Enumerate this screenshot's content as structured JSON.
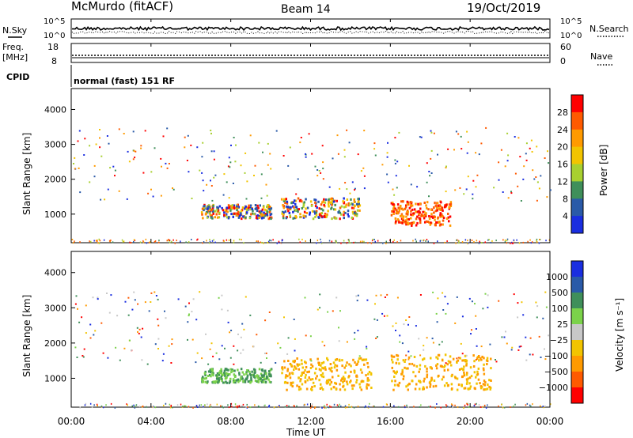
{
  "header": {
    "station": "McMurdo (fitACF)",
    "beam": "Beam 14",
    "date": "19/Oct/2019"
  },
  "top_panels": {
    "nsky_label": "N.Sky",
    "nsearch_label": "N.Search",
    "noise_ticks_left": [
      "10^5",
      "10^0"
    ],
    "noise_ticks_right": [
      "10^5",
      "10^0"
    ],
    "freq_label": "Freq.",
    "freq_unit": "[MHz]",
    "freq_ticks": [
      "18",
      "8"
    ],
    "nave_label": "Nave",
    "nave_ticks": [
      "60",
      "0"
    ],
    "cpid_label": "CPID",
    "cpid_value": "normal (fast) 151 RF"
  },
  "chart_data": [
    {
      "type": "heatmap",
      "name": "power",
      "ylabel": "Slant Range [km]",
      "xlabel": "Time UT",
      "x_ticks": [
        "00:00",
        "04:00",
        "08:00",
        "12:00",
        "16:00",
        "20:00",
        "00:00"
      ],
      "xlim_hours": [
        0,
        24
      ],
      "y_ticks": [
        1000,
        2000,
        3000,
        4000
      ],
      "ylim": [
        180,
        4600
      ],
      "colorbar": {
        "label": "Power [dB]",
        "ticks": [
          "28",
          "24",
          "20",
          "16",
          "12",
          "8",
          "4"
        ],
        "colors": [
          "#ff0000",
          "#ff5a00",
          "#ff9a00",
          "#f2c400",
          "#a8d030",
          "#3f8f5a",
          "#2a5aa8",
          "#1a2ee0"
        ]
      },
      "regions": [
        {
          "t0": 10.5,
          "t1": 14.5,
          "r0": 900,
          "r1": 1500,
          "level": "mixed"
        },
        {
          "t0": 16.0,
          "t1": 19.0,
          "r0": 700,
          "r1": 1400,
          "level": "high"
        },
        {
          "t0": 6.5,
          "t1": 10.0,
          "r0": 900,
          "r1": 1300,
          "level": "mixed"
        }
      ]
    },
    {
      "type": "heatmap",
      "name": "velocity",
      "ylabel": "Slant Range [km]",
      "xlabel": "Time UT",
      "x_ticks": [
        "00:00",
        "04:00",
        "08:00",
        "12:00",
        "16:00",
        "20:00",
        "00:00"
      ],
      "xlim_hours": [
        0,
        24
      ],
      "y_ticks": [
        1000,
        2000,
        3000,
        4000
      ],
      "ylim": [
        180,
        4600
      ],
      "colorbar": {
        "label": "Velocity [m s⁻¹]",
        "ticks": [
          "1000",
          "500",
          "100",
          "25",
          "−25",
          "−100",
          "−500",
          "−1000"
        ],
        "colors": [
          "#1a2ee0",
          "#2a5aa8",
          "#3f8f5a",
          "#7bd24a",
          "#c8c8c8",
          "#f2c400",
          "#ff9a00",
          "#ff5a00",
          "#ff0000"
        ]
      },
      "regions": [
        {
          "t0": 10.5,
          "t1": 15.0,
          "r0": 700,
          "r1": 1600,
          "level": "negative"
        },
        {
          "t0": 16.0,
          "t1": 21.0,
          "r0": 700,
          "r1": 1700,
          "level": "negative"
        },
        {
          "t0": 6.5,
          "t1": 10.0,
          "r0": 900,
          "r1": 1300,
          "level": "positive"
        }
      ]
    }
  ],
  "x_axis": {
    "ticks": [
      "00:00",
      "04:00",
      "08:00",
      "12:00",
      "16:00",
      "20:00",
      "00:00"
    ],
    "title": "Time UT"
  }
}
